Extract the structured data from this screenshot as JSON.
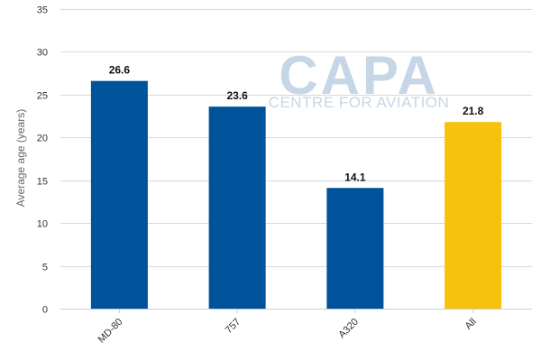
{
  "watermark": {
    "brand": "CAPA",
    "tagline": "CENTRE FOR AVIATION"
  },
  "chart_data": {
    "type": "bar",
    "title": "",
    "xlabel": "",
    "ylabel": "Average age (years)",
    "categories": [
      "MD-80",
      "757",
      "A320",
      "All"
    ],
    "values": [
      26.6,
      23.6,
      14.1,
      21.8
    ],
    "data_labels": [
      "26.6",
      "23.6",
      "14.1",
      "21.8"
    ],
    "bar_colors": [
      "#00529b",
      "#00529b",
      "#00529b",
      "#f8c10d"
    ],
    "ylim": [
      0,
      35
    ],
    "yticks": [
      0,
      5,
      10,
      15,
      20,
      25,
      30,
      35
    ],
    "grid": true,
    "legend": "none"
  }
}
